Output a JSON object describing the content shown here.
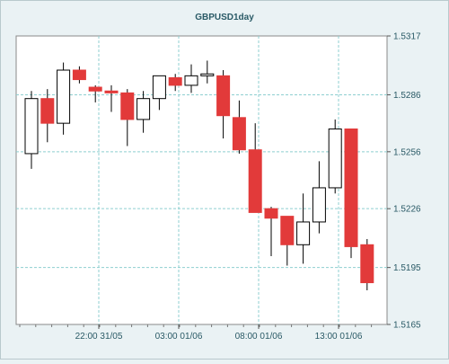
{
  "chart_data": {
    "type": "candlestick",
    "title": "GBPUSD1day",
    "xlabel": "",
    "ylabel": "",
    "ylim": [
      1.5165,
      1.5317
    ],
    "y_ticks": [
      "1.5317",
      "1.5286",
      "1.5256",
      "1.5226",
      "1.5195",
      "1.5165"
    ],
    "x_ticks": [
      "22:00 31/05",
      "03:00 01/06",
      "08:00 01/06",
      "13:00 01/06"
    ],
    "grid": true,
    "colors": {
      "up": "#ffffff",
      "down": "#e23a3a",
      "outline": "#000000",
      "grid": "#8fcfd0",
      "plot_bg": "#ffffff"
    },
    "candles": [
      {
        "open": 1.5255,
        "high": 1.5288,
        "low": 1.5247,
        "close": 1.5284
      },
      {
        "open": 1.5284,
        "high": 1.5289,
        "low": 1.5261,
        "close": 1.5271
      },
      {
        "open": 1.5271,
        "high": 1.5303,
        "low": 1.5265,
        "close": 1.5299
      },
      {
        "open": 1.5299,
        "high": 1.5301,
        "low": 1.5292,
        "close": 1.5294
      },
      {
        "open": 1.529,
        "high": 1.5291,
        "low": 1.5282,
        "close": 1.5288
      },
      {
        "open": 1.5288,
        "high": 1.5291,
        "low": 1.5277,
        "close": 1.5287
      },
      {
        "open": 1.5287,
        "high": 1.5289,
        "low": 1.5259,
        "close": 1.5273
      },
      {
        "open": 1.5273,
        "high": 1.5288,
        "low": 1.5266,
        "close": 1.5284
      },
      {
        "open": 1.5284,
        "high": 1.5296,
        "low": 1.5278,
        "close": 1.5296
      },
      {
        "open": 1.5295,
        "high": 1.5297,
        "low": 1.5288,
        "close": 1.5291
      },
      {
        "open": 1.5291,
        "high": 1.5302,
        "low": 1.5287,
        "close": 1.5296
      },
      {
        "open": 1.5296,
        "high": 1.5304,
        "low": 1.5292,
        "close": 1.5297
      },
      {
        "open": 1.5296,
        "high": 1.5299,
        "low": 1.5263,
        "close": 1.5275
      },
      {
        "open": 1.5274,
        "high": 1.5283,
        "low": 1.5255,
        "close": 1.5257
      },
      {
        "open": 1.5257,
        "high": 1.5271,
        "low": 1.5224,
        "close": 1.5224
      },
      {
        "open": 1.5226,
        "high": 1.5227,
        "low": 1.5201,
        "close": 1.5221
      },
      {
        "open": 1.5222,
        "high": 1.5222,
        "low": 1.5196,
        "close": 1.5207
      },
      {
        "open": 1.5207,
        "high": 1.5234,
        "low": 1.5197,
        "close": 1.5219
      },
      {
        "open": 1.5219,
        "high": 1.5251,
        "low": 1.5213,
        "close": 1.5237
      },
      {
        "open": 1.5237,
        "high": 1.5273,
        "low": 1.5234,
        "close": 1.5268
      },
      {
        "open": 1.5268,
        "high": 1.5268,
        "low": 1.52,
        "close": 1.5206
      },
      {
        "open": 1.5207,
        "high": 1.521,
        "low": 1.5183,
        "close": 1.5187
      }
    ]
  }
}
